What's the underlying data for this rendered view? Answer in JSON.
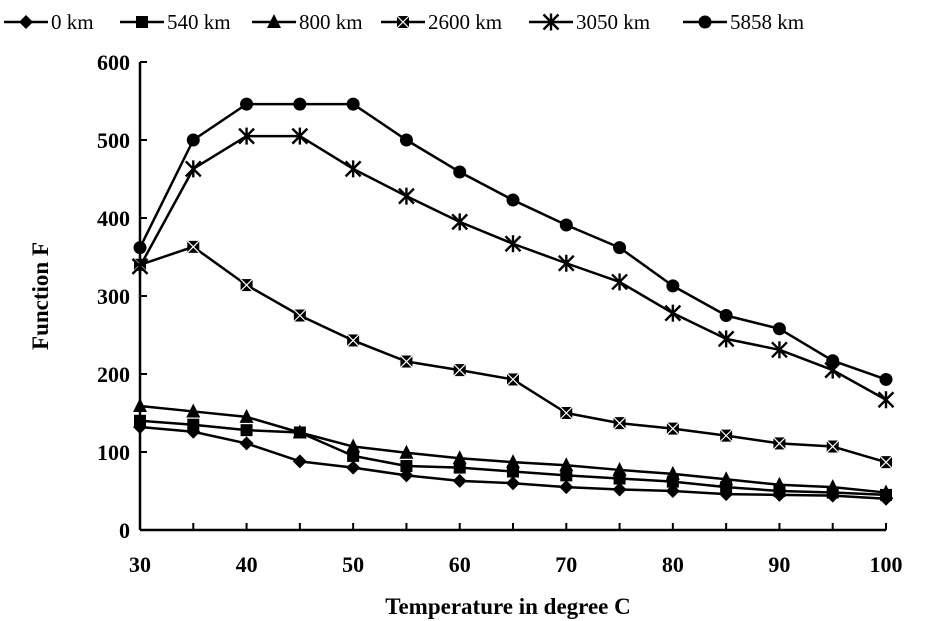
{
  "chart_data": {
    "type": "line",
    "title": "",
    "xlabel": "Temperature in degree C",
    "ylabel": "Function F",
    "x": [
      30,
      35,
      40,
      45,
      50,
      55,
      60,
      65,
      70,
      75,
      80,
      85,
      90,
      95,
      100
    ],
    "xlim": [
      30,
      100
    ],
    "ylim": [
      0,
      600
    ],
    "x_ticks": [
      30,
      40,
      50,
      60,
      70,
      80,
      90,
      100
    ],
    "y_ticks": [
      0,
      100,
      200,
      300,
      400,
      500,
      600
    ],
    "grid": false,
    "legend_position": "top",
    "series": [
      {
        "name": "0 km",
        "marker": "diamond",
        "values": [
          132,
          126,
          111,
          88,
          80,
          70,
          63,
          60,
          55,
          52,
          50,
          46,
          45,
          44,
          40
        ]
      },
      {
        "name": "540 km",
        "marker": "square",
        "values": [
          140,
          135,
          128,
          125,
          95,
          82,
          80,
          75,
          70,
          66,
          62,
          55,
          50,
          48,
          45
        ]
      },
      {
        "name": "800 km",
        "marker": "triangle",
        "values": [
          159,
          152,
          145,
          125,
          107,
          99,
          92,
          87,
          83,
          77,
          72,
          65,
          58,
          55,
          48
        ]
      },
      {
        "name": "2600 km",
        "marker": "box-x",
        "values": [
          340,
          363,
          314,
          275,
          243,
          216,
          205,
          193,
          150,
          137,
          130,
          121,
          111,
          107,
          87
        ]
      },
      {
        "name": "3050 km",
        "marker": "asterisk",
        "values": [
          338,
          463,
          505,
          505,
          463,
          428,
          395,
          367,
          342,
          318,
          278,
          245,
          231,
          205,
          167
        ]
      },
      {
        "name": "5858 km",
        "marker": "circle",
        "values": [
          362,
          500,
          546,
          546,
          546,
          500,
          459,
          423,
          391,
          362,
          313,
          275,
          258,
          217,
          193
        ]
      }
    ]
  }
}
